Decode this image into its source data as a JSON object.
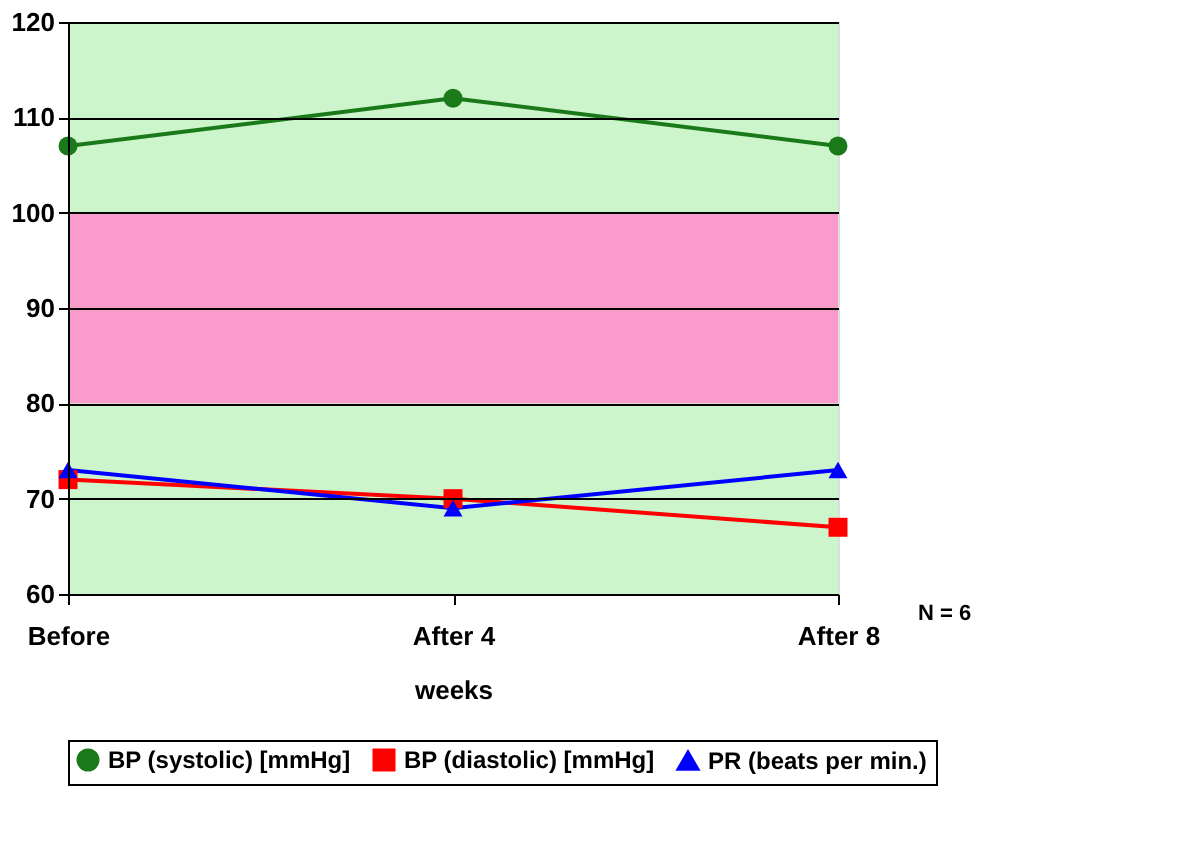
{
  "chart_data": {
    "type": "line",
    "xlabel": "weeks",
    "categories": [
      "Before",
      "After 4",
      "After 8"
    ],
    "series": [
      {
        "name": "BP (systolic) [mmHg]",
        "color": "#1a7a1a",
        "marker": "circle",
        "values": [
          107,
          112,
          107
        ]
      },
      {
        "name": "BP (diastolic) [mmHg]",
        "color": "#ff0000",
        "marker": "square",
        "values": [
          72,
          70,
          67
        ]
      },
      {
        "name": "PR (beats per min.)",
        "color": "#0000ff",
        "marker": "triangle",
        "values": [
          73,
          69,
          73
        ]
      }
    ],
    "ylim": [
      60,
      120
    ],
    "yticks": [
      60,
      70,
      80,
      90,
      100,
      110,
      120
    ],
    "grid": "y",
    "legend": "bottom",
    "bands": [
      {
        "axis": "y",
        "from": 60,
        "to": 120,
        "color": "#ccf5cc"
      },
      {
        "axis": "y",
        "from": 80,
        "to": 100,
        "color": "#f99ccb"
      }
    ],
    "annotations": [
      "N = 6"
    ]
  }
}
